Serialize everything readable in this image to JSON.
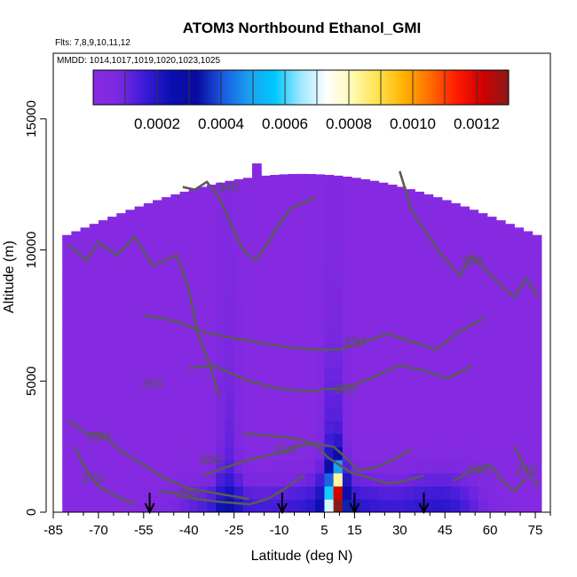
{
  "colors": {
    "background": "#ffffff",
    "contour": "#5a5a5a",
    "arrow": "#000000",
    "colormap": [
      "#8a2be2",
      "#7a28e0",
      "#3a1ad8",
      "#0a10b0",
      "#0a0aa0",
      "#1a5ae0",
      "#1aa0f0",
      "#00c8ff",
      "#a0e8ff",
      "#ffffff",
      "#fff9b0",
      "#ffe14a",
      "#ffb000",
      "#ff6a00",
      "#ff1a00",
      "#d00000",
      "#8a1a1a"
    ]
  },
  "chart_data": {
    "type": "heatmap",
    "title": "ATOM3 Northbound Ethanol_GMI",
    "subtitle_flights": "Flts: 7,8,9,10,11,12",
    "subtitle_dates": "MMDD: 1014,1017,1019,1020,1023,1025",
    "xlabel": "Latitude (deg N)",
    "ylabel": "Altitude (m)",
    "xlim": [
      -85,
      80
    ],
    "ylim": [
      0,
      17500
    ],
    "x_ticks": [
      -85,
      -70,
      -55,
      -40,
      -25,
      -10,
      5,
      15,
      30,
      45,
      60,
      75
    ],
    "y_ticks": [
      0,
      5000,
      10000,
      15000
    ],
    "colorbar": {
      "min": 0.0,
      "max": 0.0013,
      "ticks": [
        0.0002,
        0.0004,
        0.0006,
        0.0008,
        0.001,
        0.0012
      ],
      "tick_labels": [
        "0.0002",
        "0.0004",
        "0.0006",
        "0.0008",
        "0.0010",
        "0.0012"
      ]
    },
    "contours": [
      {
        "label": "270",
        "points": [
          [
            -78,
            2500
          ],
          [
            -74,
            1600
          ],
          [
            -70,
            1000
          ],
          [
            -64,
            600
          ],
          [
            -58,
            300
          ]
        ],
        "label_at": [
          -72,
          1300
        ]
      },
      {
        "label": "280",
        "points": [
          [
            -80,
            3500
          ],
          [
            -74,
            3000
          ],
          [
            -68,
            2900
          ],
          [
            -62,
            2300
          ],
          [
            -55,
            1800
          ],
          [
            -48,
            1300
          ],
          [
            -40,
            900
          ],
          [
            -30,
            700
          ],
          [
            -20,
            500
          ]
        ],
        "label_at": [
          -70,
          2900
        ]
      },
      {
        "label": "290",
        "points": [
          [
            -50,
            800
          ],
          [
            -44,
            700
          ],
          [
            -38,
            500
          ],
          [
            -30,
            400
          ],
          [
            -20,
            300
          ],
          [
            -14,
            500
          ],
          [
            -8,
            900
          ],
          [
            -2,
            1400
          ]
        ],
        "label_at": [
          -40,
          700
        ]
      },
      {
        "label": "300",
        "points": [
          [
            -35,
            1400
          ],
          [
            -28,
            1700
          ],
          [
            -20,
            2000
          ],
          [
            -12,
            2200
          ],
          [
            -4,
            2500
          ],
          [
            2,
            2600
          ],
          [
            6,
            2100
          ],
          [
            10,
            1800
          ],
          [
            14,
            1500
          ],
          [
            20,
            1300
          ],
          [
            26,
            1100
          ],
          [
            32,
            1200
          ],
          [
            38,
            1400
          ]
        ],
        "label_at": [
          -33,
          2000
        ]
      },
      {
        "label": "310",
        "points": [
          [
            -22,
            3000
          ],
          [
            -12,
            2900
          ],
          [
            -4,
            2800
          ],
          [
            2,
            2600
          ],
          [
            8,
            2500
          ],
          [
            12,
            2100
          ],
          [
            16,
            1600
          ],
          [
            22,
            1700
          ],
          [
            28,
            2000
          ],
          [
            34,
            2400
          ]
        ],
        "label_at": [
          -8,
          2400
        ]
      },
      {
        "label": "320",
        "points": [
          [
            -40,
            5500
          ],
          [
            -32,
            5600
          ],
          [
            -20,
            5000
          ],
          [
            -10,
            4700
          ],
          [
            0,
            4600
          ],
          [
            6,
            4700
          ],
          [
            10,
            4700
          ],
          [
            16,
            4900
          ],
          [
            22,
            5200
          ],
          [
            30,
            5600
          ],
          [
            38,
            5400
          ],
          [
            46,
            5100
          ],
          [
            54,
            5600
          ]
        ],
        "label_at": [
          12,
          4700
        ]
      },
      {
        "label": "330",
        "points": [
          [
            -55,
            7500
          ],
          [
            -45,
            7300
          ],
          [
            -36,
            6900
          ],
          [
            -28,
            6700
          ],
          [
            -18,
            6500
          ],
          [
            -8,
            6300
          ],
          [
            2,
            6200
          ],
          [
            10,
            6200
          ],
          [
            18,
            6500
          ],
          [
            26,
            6800
          ],
          [
            34,
            6500
          ],
          [
            42,
            6200
          ],
          [
            50,
            6900
          ],
          [
            58,
            7400
          ]
        ],
        "label_at": [
          15,
          6500
        ]
      },
      {
        "label": "340",
        "points": [
          [
            -42,
            12400
          ],
          [
            -38,
            12300
          ],
          [
            -34,
            12600
          ],
          [
            -30,
            12000
          ],
          [
            -26,
            11000
          ],
          [
            -22,
            10000
          ],
          [
            -18,
            9600
          ],
          [
            -14,
            10200
          ],
          [
            -10,
            11000
          ],
          [
            -6,
            11600
          ],
          [
            -2,
            11800
          ],
          [
            2,
            12000
          ]
        ],
        "label_at": [
          -27,
          12400
        ]
      },
      {
        "label": "350",
        "points": [
          [
            -80,
            10200
          ],
          [
            -74,
            9600
          ],
          [
            -70,
            10300
          ],
          [
            -64,
            9800
          ],
          [
            -58,
            10500
          ],
          [
            -52,
            9400
          ],
          [
            -48,
            9600
          ],
          [
            -44,
            9800
          ],
          [
            -40,
            8500
          ],
          [
            -37,
            6800
          ],
          [
            -33,
            5600
          ],
          [
            -30,
            4400
          ]
        ],
        "label_at": [
          -52,
          4900
        ]
      },
      {
        "label": "350",
        "points": [
          [
            30,
            13000
          ],
          [
            34,
            11500
          ],
          [
            38,
            10800
          ],
          [
            44,
            9800
          ],
          [
            50,
            9000
          ],
          [
            54,
            9800
          ],
          [
            58,
            9300
          ],
          [
            64,
            8600
          ],
          [
            68,
            8200
          ],
          [
            72,
            8900
          ],
          [
            76,
            8200
          ]
        ],
        "label_at": [
          54,
          9600
        ]
      },
      {
        "label": "290",
        "points": [
          [
            48,
            1200
          ],
          [
            54,
            1600
          ],
          [
            60,
            1800
          ],
          [
            64,
            1200
          ],
          [
            68,
            800
          ],
          [
            72,
            1300
          ]
        ],
        "label_at": [
          56,
          1600
        ]
      },
      {
        "label": "270",
        "points": [
          [
            68,
            2500
          ],
          [
            72,
            1600
          ],
          [
            76,
            1000
          ]
        ],
        "label_at": [
          72,
          1600
        ]
      }
    ],
    "flight_markers_latitude": [
      -53,
      -9,
      15,
      38
    ]
  }
}
